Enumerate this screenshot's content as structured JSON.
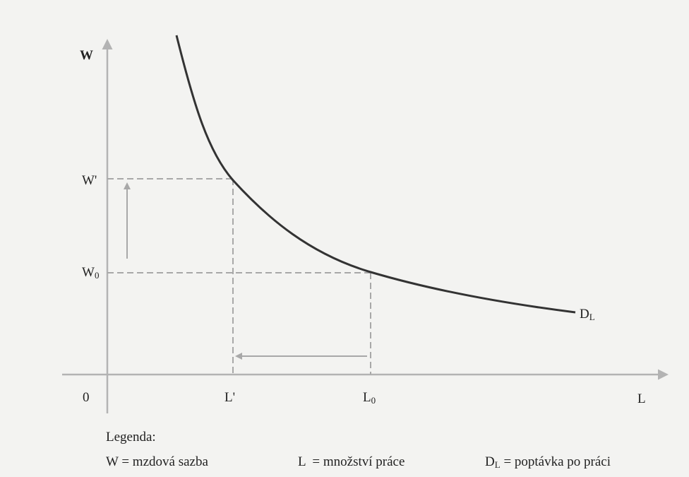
{
  "axes": {
    "y_label": "W",
    "x_label": "L",
    "origin": "0",
    "w_prime": "W'",
    "w_zero": {
      "base": "W",
      "sub": "0"
    },
    "l_prime": "L'",
    "l_zero": {
      "base": "L",
      "sub": "0"
    }
  },
  "curve_label": {
    "base": "D",
    "sub": "L"
  },
  "legend": {
    "title": "Legenda:",
    "items": [
      {
        "text": "W = mzdová sazba"
      },
      {
        "text": "L  = množství práce"
      },
      {
        "base": "D",
        "sub": "L",
        "text": " = poptávka po práci"
      }
    ]
  }
}
